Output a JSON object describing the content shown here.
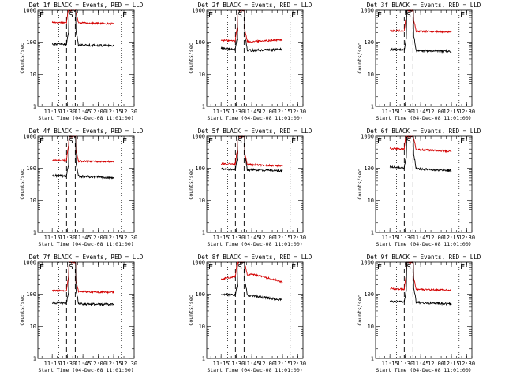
{
  "figure": {
    "ylabel": "Counts/sec",
    "xlabel": "Start Time (04-Dec-08 11:01:00)",
    "xtick_labels": [
      "11:15",
      "11:30",
      "11:45",
      "12:00",
      "12:15",
      "12:30"
    ],
    "ytick_labels": [
      "1",
      "10",
      "100",
      "1000"
    ],
    "marker_labels": [
      "E",
      "S",
      "E"
    ]
  },
  "colors": {
    "events": "#000000",
    "lld": "#d40000"
  },
  "chart_data": [
    {
      "type": "line",
      "title": "Det 1f BLACK = Events, RED = LLD",
      "xlabel": "Start Time (04-Dec-08 11:01:00)",
      "ylabel": "Counts/sec",
      "y_scale": "log",
      "xlim": [
        1.0,
        95.0
      ],
      "ylim": [
        1,
        1000
      ],
      "x_start_min": 15,
      "x_end_min": 75,
      "flare": {
        "rise": 31,
        "fall": 38
      },
      "dotted_x": [
        21.5,
        82.5
      ],
      "dashed_x": [
        29,
        37.5
      ],
      "levels": {
        "lld": [
          420,
          400,
          380
        ],
        "events": [
          90,
          82,
          78
        ]
      },
      "labels": {
        "xtick": [
          "11:15",
          "11:30",
          "11:45",
          "12:00",
          "12:15",
          "12:30"
        ]
      }
    },
    {
      "type": "line",
      "title": "Det 2f BLACK = Events, RED = LLD",
      "xlabel": "Start Time (04-Dec-08 11:01:00)",
      "ylabel": "Counts/sec",
      "y_scale": "log",
      "xlim": [
        1.0,
        95.0
      ],
      "ylim": [
        1,
        1000
      ],
      "x_start_min": 15,
      "x_end_min": 75,
      "flare": {
        "rise": 31,
        "fall": 38
      },
      "dotted_x": [
        21.5,
        82.5
      ],
      "dashed_x": [
        29,
        37.5
      ],
      "levels": {
        "lld": [
          115,
          105,
          120
        ],
        "events": [
          65,
          55,
          60
        ]
      },
      "labels": {
        "xtick": [
          "11:15",
          "11:30",
          "11:45",
          "12:00",
          "12:15",
          "12:30"
        ]
      }
    },
    {
      "type": "line",
      "title": "Det 3f BLACK = Events, RED = LLD",
      "xlabel": "Start Time (04-Dec-08 11:01:00)",
      "ylabel": "Counts/sec",
      "y_scale": "log",
      "xlim": [
        1.0,
        95.0
      ],
      "ylim": [
        1,
        1000
      ],
      "x_start_min": 15,
      "x_end_min": 75,
      "flare": {
        "rise": 31,
        "fall": 38
      },
      "dotted_x": [
        21.5,
        82.5
      ],
      "dashed_x": [
        29,
        37.5
      ],
      "levels": {
        "lld": [
          230,
          220,
          210
        ],
        "events": [
          60,
          55,
          52
        ]
      },
      "labels": {
        "xtick": [
          "11:15",
          "11:30",
          "11:45",
          "12:00",
          "12:15",
          "12:30"
        ]
      }
    },
    {
      "type": "line",
      "title": "Det 4f BLACK = Events, RED = LLD",
      "xlabel": "Start Time (04-Dec-08 11:01:00)",
      "ylabel": "Counts/sec",
      "y_scale": "log",
      "xlim": [
        1.0,
        95.0
      ],
      "ylim": [
        1,
        1000
      ],
      "x_start_min": 15,
      "x_end_min": 75,
      "flare": {
        "rise": 31,
        "fall": 38
      },
      "dotted_x": [
        21.5,
        82.5
      ],
      "dashed_x": [
        29,
        37.5
      ],
      "levels": {
        "lld": [
          180,
          165,
          160
        ],
        "events": [
          60,
          55,
          52
        ]
      },
      "labels": {
        "xtick": [
          "11:15",
          "11:30",
          "11:45",
          "12:00",
          "12:15",
          "12:30"
        ]
      }
    },
    {
      "type": "line",
      "title": "Det 5f BLACK = Events, RED = LLD",
      "xlabel": "Start Time (04-Dec-08 11:01:00)",
      "ylabel": "Counts/sec",
      "y_scale": "log",
      "xlim": [
        1.0,
        95.0
      ],
      "ylim": [
        1,
        1000
      ],
      "x_start_min": 15,
      "x_end_min": 75,
      "flare": {
        "rise": 31,
        "fall": 38
      },
      "dotted_x": [
        21.5,
        82.5
      ],
      "dashed_x": [
        29,
        37.5
      ],
      "levels": {
        "lld": [
          140,
          130,
          120
        ],
        "events": [
          95,
          90,
          85
        ]
      },
      "labels": {
        "xtick": [
          "11:15",
          "11:30",
          "11:45",
          "12:00",
          "12:15",
          "12:30"
        ]
      }
    },
    {
      "type": "line",
      "title": "Det 6f BLACK = Events, RED = LLD",
      "xlabel": "Start Time (04-Dec-08 11:01:00)",
      "ylabel": "Counts/sec",
      "y_scale": "log",
      "xlim": [
        1.0,
        95.0
      ],
      "ylim": [
        1,
        1000
      ],
      "x_start_min": 15,
      "x_end_min": 75,
      "flare": {
        "rise": 31,
        "fall": 38
      },
      "dotted_x": [
        21.5,
        82.5
      ],
      "dashed_x": [
        29,
        37.5
      ],
      "levels": {
        "lld": [
          420,
          380,
          340
        ],
        "events": [
          110,
          95,
          85
        ]
      },
      "labels": {
        "xtick": [
          "11:15",
          "11:30",
          "11:45",
          "12:00",
          "12:15",
          "12:30"
        ]
      }
    },
    {
      "type": "line",
      "title": "Det 7f BLACK = Events, RED = LLD",
      "xlabel": "Start Time (04-Dec-08 11:01:00)",
      "ylabel": "Counts/sec",
      "y_scale": "log",
      "xlim": [
        1.0,
        95.0
      ],
      "ylim": [
        1,
        1000
      ],
      "x_start_min": 15,
      "x_end_min": 75,
      "flare": {
        "rise": 31,
        "fall": 38
      },
      "dotted_x": [
        21.5,
        82.5
      ],
      "dashed_x": [
        29,
        37.5
      ],
      "levels": {
        "lld": [
          130,
          120,
          115
        ],
        "events": [
          55,
          50,
          48
        ]
      },
      "labels": {
        "xtick": [
          "11:15",
          "11:30",
          "11:45",
          "12:00",
          "12:15",
          "12:30"
        ]
      }
    },
    {
      "type": "line",
      "title": "Det 8f BLACK = Events, RED = LLD",
      "xlabel": "Start Time (04-Dec-08 11:01:00)",
      "ylabel": "Counts/sec",
      "y_scale": "log",
      "xlim": [
        1.0,
        95.0
      ],
      "ylim": [
        1,
        1000
      ],
      "x_start_min": 15,
      "x_end_min": 75,
      "flare": {
        "rise": 31,
        "fall": 38
      },
      "dotted_x": [
        21.5,
        82.5
      ],
      "dashed_x": [
        29,
        37.5
      ],
      "levels": {
        "lld": [
          300,
          420,
          240
        ],
        "events": [
          100,
          90,
          65
        ]
      },
      "labels": {
        "xtick": [
          "11:15",
          "11:30",
          "11:45",
          "12:00",
          "12:15",
          "12:30"
        ]
      }
    },
    {
      "type": "line",
      "title": "Det 9f BLACK = Events, RED = LLD",
      "xlabel": "Start Time (04-Dec-08 11:01:00)",
      "ylabel": "Counts/sec",
      "y_scale": "log",
      "xlim": [
        1.0,
        95.0
      ],
      "ylim": [
        1,
        1000
      ],
      "x_start_min": 15,
      "x_end_min": 75,
      "flare": {
        "rise": 31,
        "fall": 38
      },
      "dotted_x": [
        21.5,
        82.5
      ],
      "dashed_x": [
        29,
        37.5
      ],
      "levels": {
        "lld": [
          150,
          140,
          135
        ],
        "events": [
          60,
          55,
          50
        ]
      },
      "labels": {
        "xtick": [
          "11:15",
          "11:30",
          "11:45",
          "12:00",
          "12:15",
          "12:30"
        ]
      }
    }
  ]
}
